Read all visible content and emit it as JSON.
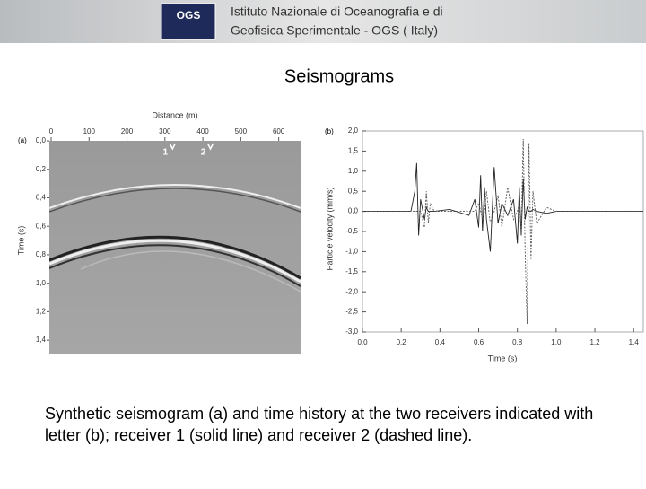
{
  "header": {
    "logo": "OGS",
    "institute": [
      "Istituto Nazionale di Oceanografia e di",
      "Geofisica Sperimentale - OGS ( Italy)"
    ]
  },
  "title": "Seismograms",
  "figure": {
    "panel_a": {
      "type": "image-axes",
      "label": "(a)",
      "x_label": "Distance (m)",
      "y_label": "Time (s)",
      "xlim": [
        0,
        660
      ],
      "ylim": [
        0,
        1.5
      ],
      "xticks": [
        0,
        100,
        200,
        300,
        400,
        500,
        600
      ],
      "yticks": [
        {
          "value": 0,
          "label": "0,0"
        },
        {
          "value": 0.2,
          "label": "0,2"
        },
        {
          "value": 0.4,
          "label": "0,4"
        },
        {
          "value": 0.6,
          "label": "0,6"
        },
        {
          "value": 0.8,
          "label": "0,8"
        },
        {
          "value": 1.0,
          "label": "1,0"
        },
        {
          "value": 1.2,
          "label": "1,2"
        },
        {
          "value": 1.4,
          "label": "1,4"
        }
      ],
      "receivers": [
        {
          "label": "1",
          "x": 320
        },
        {
          "label": "2",
          "x": 420
        }
      ]
    },
    "panel_b": {
      "type": "line",
      "label": "(b)",
      "x_label": "Time (s)",
      "y_label": "Particle velocity (mm/s)",
      "xlim": [
        0,
        1.45
      ],
      "ylim": [
        -3,
        2
      ],
      "xticks": [
        {
          "value": 0,
          "label": "0,0"
        },
        {
          "value": 0.2,
          "label": "0,2"
        },
        {
          "value": 0.4,
          "label": "0,4"
        },
        {
          "value": 0.6,
          "label": "0,6"
        },
        {
          "value": 0.8,
          "label": "0,8"
        },
        {
          "value": 1.0,
          "label": "1,0"
        },
        {
          "value": 1.2,
          "label": "1,2"
        },
        {
          "value": 1.4,
          "label": "1,4"
        }
      ],
      "yticks": [
        {
          "value": 2,
          "label": "2,0"
        },
        {
          "value": 1.5,
          "label": "1,5"
        },
        {
          "value": 1,
          "label": "1,0"
        },
        {
          "value": 0.5,
          "label": "0,5"
        },
        {
          "value": 0,
          "label": "0,0"
        },
        {
          "value": -0.5,
          "label": "-0,5"
        },
        {
          "value": -1,
          "label": "-1,0"
        },
        {
          "value": -1.5,
          "label": "-1,5"
        },
        {
          "value": -2,
          "label": "-2,0"
        },
        {
          "value": -2.5,
          "label": "-2,5"
        },
        {
          "value": -3,
          "label": "-3,0"
        }
      ],
      "x": [
        0.0,
        0.25,
        0.27,
        0.28,
        0.29,
        0.3,
        0.32,
        0.33,
        0.34,
        0.35,
        0.37,
        0.45,
        0.55,
        0.58,
        0.6,
        0.61,
        0.62,
        0.63,
        0.64,
        0.66,
        0.68,
        0.7,
        0.72,
        0.75,
        0.78,
        0.8,
        0.81,
        0.82,
        0.83,
        0.84,
        0.85,
        0.86,
        0.87,
        0.88,
        0.9,
        0.95,
        1.0,
        1.2,
        1.45
      ],
      "series": [
        {
          "color": "#222222",
          "style": "solid",
          "values": [
            0,
            0,
            0.5,
            1.2,
            -0.6,
            0.3,
            -0.2,
            0.1,
            0,
            0,
            0,
            0.05,
            -0.1,
            0.3,
            -0.4,
            0.9,
            -0.5,
            0.6,
            -0.2,
            -1.0,
            1.1,
            -0.3,
            0.2,
            -0.1,
            0.3,
            -0.8,
            0.6,
            -0.6,
            0.8,
            -0.2,
            0.1,
            0,
            0,
            0.05,
            0,
            -0.05,
            0,
            0,
            0
          ]
        },
        {
          "color": "#555555",
          "style": "dashed",
          "values": [
            0,
            0,
            0,
            0,
            0,
            0,
            -0.4,
            0.5,
            -0.3,
            0.2,
            0,
            0,
            0,
            0,
            0.2,
            0,
            -0.2,
            0,
            0.5,
            -0.3,
            0,
            0.4,
            -0.4,
            0.6,
            -0.2,
            0,
            0.2,
            -0.5,
            1.8,
            -1.0,
            -2.8,
            1.7,
            -1.2,
            0.5,
            -0.3,
            0.1,
            0,
            0,
            0
          ]
        }
      ]
    }
  },
  "caption": [
    "Synthetic seismogram (a) and time history at the two receivers indicated with letter (b); receiver 1 (solid line) and receiver 2 (dashed line)."
  ]
}
